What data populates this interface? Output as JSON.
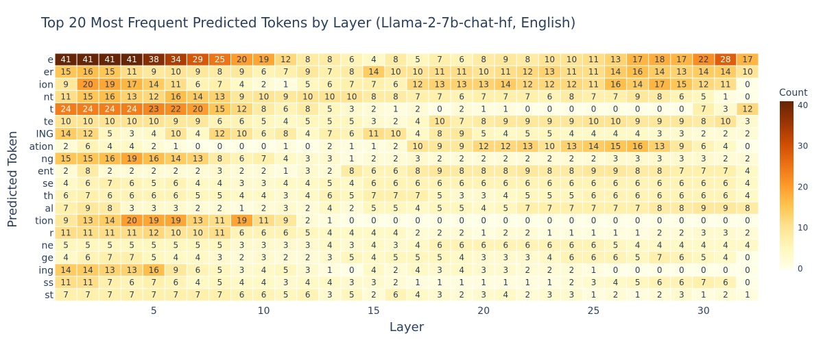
{
  "chart_data": {
    "type": "heatmap",
    "title": "Top 20 Most Frequent Predicted Tokens by Layer (Llama-2-7b-chat-hf, English)",
    "xlabel": "Layer",
    "ylabel": "Predicted Token",
    "colorbar_title": "Count",
    "x": [
      1,
      2,
      3,
      4,
      5,
      6,
      7,
      8,
      9,
      10,
      11,
      12,
      13,
      14,
      15,
      16,
      17,
      18,
      19,
      20,
      21,
      22,
      23,
      24,
      25,
      26,
      27,
      28,
      29,
      30,
      31,
      32
    ],
    "x_ticks": [
      5,
      10,
      15,
      20,
      25,
      30
    ],
    "zlim": [
      0,
      41
    ],
    "colorbar_ticks": [
      0,
      10,
      20,
      30,
      40
    ],
    "colorscale": [
      "#ffffe5",
      "#fff7bc",
      "#fee391",
      "#fec44f",
      "#fe9929",
      "#ec7014",
      "#cc4c02",
      "#993404",
      "#662506"
    ],
    "y": [
      "e",
      "er",
      "ion",
      "nt",
      "t",
      "te",
      "ING",
      "ation",
      "ng",
      "ent",
      "se",
      "th",
      "al",
      "tion",
      "r",
      "ne",
      "ge",
      "ing",
      "ss",
      "st"
    ],
    "z": [
      [
        41,
        41,
        41,
        41,
        38,
        34,
        29,
        25,
        20,
        19,
        12,
        8,
        8,
        6,
        4,
        8,
        5,
        7,
        6,
        8,
        9,
        8,
        10,
        10,
        11,
        13,
        17,
        18,
        17,
        22,
        28,
        17
      ],
      [
        15,
        16,
        15,
        11,
        9,
        10,
        9,
        8,
        9,
        6,
        7,
        9,
        7,
        8,
        14,
        10,
        10,
        11,
        11,
        10,
        11,
        12,
        13,
        11,
        11,
        14,
        16,
        14,
        13,
        14,
        14,
        10
      ],
      [
        9,
        20,
        19,
        17,
        14,
        11,
        6,
        7,
        4,
        2,
        1,
        5,
        6,
        7,
        7,
        6,
        12,
        13,
        13,
        13,
        14,
        12,
        12,
        12,
        11,
        16,
        14,
        17,
        15,
        12,
        11,
        0
      ],
      [
        11,
        15,
        16,
        13,
        12,
        16,
        14,
        13,
        9,
        10,
        9,
        10,
        10,
        10,
        8,
        8,
        7,
        7,
        6,
        7,
        7,
        7,
        6,
        8,
        7,
        7,
        9,
        8,
        6,
        5,
        1,
        0
      ],
      [
        24,
        24,
        24,
        24,
        23,
        22,
        20,
        15,
        12,
        8,
        6,
        8,
        5,
        3,
        2,
        1,
        2,
        0,
        2,
        1,
        1,
        0,
        0,
        0,
        0,
        0,
        0,
        0,
        0,
        7,
        3,
        12
      ],
      [
        10,
        10,
        10,
        10,
        10,
        9,
        9,
        6,
        6,
        5,
        4,
        5,
        5,
        5,
        3,
        2,
        4,
        10,
        7,
        8,
        9,
        9,
        9,
        9,
        10,
        10,
        9,
        9,
        9,
        8,
        10,
        3
      ],
      [
        14,
        12,
        5,
        3,
        4,
        10,
        4,
        12,
        10,
        6,
        8,
        4,
        7,
        6,
        11,
        10,
        4,
        8,
        9,
        5,
        4,
        5,
        5,
        4,
        4,
        4,
        4,
        3,
        3,
        2,
        2,
        2
      ],
      [
        2,
        6,
        4,
        4,
        2,
        1,
        0,
        0,
        0,
        0,
        1,
        0,
        2,
        1,
        1,
        2,
        10,
        9,
        9,
        12,
        12,
        13,
        10,
        13,
        14,
        15,
        16,
        13,
        9,
        6,
        4,
        0
      ],
      [
        15,
        15,
        16,
        19,
        16,
        14,
        13,
        8,
        6,
        7,
        4,
        3,
        3,
        1,
        2,
        2,
        3,
        2,
        2,
        2,
        2,
        2,
        2,
        2,
        2,
        3,
        3,
        3,
        3,
        3,
        2,
        2
      ],
      [
        2,
        8,
        2,
        2,
        2,
        2,
        2,
        3,
        2,
        2,
        1,
        3,
        2,
        8,
        6,
        6,
        8,
        9,
        8,
        8,
        8,
        9,
        8,
        8,
        9,
        9,
        8,
        8,
        7,
        7,
        7,
        4
      ],
      [
        4,
        6,
        7,
        6,
        5,
        6,
        4,
        4,
        3,
        3,
        4,
        4,
        5,
        4,
        6,
        6,
        6,
        6,
        6,
        6,
        6,
        6,
        6,
        6,
        6,
        6,
        6,
        6,
        6,
        6,
        6,
        4
      ],
      [
        6,
        7,
        6,
        6,
        6,
        6,
        5,
        5,
        4,
        4,
        3,
        4,
        6,
        5,
        7,
        7,
        7,
        5,
        3,
        3,
        4,
        5,
        5,
        5,
        6,
        6,
        6,
        6,
        6,
        6,
        6,
        4
      ],
      [
        7,
        9,
        8,
        3,
        3,
        3,
        2,
        2,
        1,
        2,
        3,
        2,
        4,
        2,
        5,
        5,
        4,
        5,
        5,
        4,
        5,
        7,
        7,
        7,
        7,
        7,
        7,
        8,
        8,
        9,
        9,
        8
      ],
      [
        9,
        13,
        14,
        20,
        19,
        19,
        13,
        11,
        19,
        11,
        9,
        2,
        1,
        0,
        0,
        0,
        0,
        0,
        0,
        0,
        0,
        0,
        0,
        0,
        0,
        0,
        0,
        0,
        0,
        0,
        0,
        0
      ],
      [
        11,
        11,
        11,
        11,
        12,
        10,
        10,
        11,
        6,
        6,
        6,
        5,
        4,
        4,
        4,
        4,
        2,
        2,
        2,
        1,
        2,
        2,
        1,
        1,
        1,
        1,
        1,
        2,
        2,
        3,
        3,
        2
      ],
      [
        5,
        5,
        5,
        5,
        5,
        5,
        5,
        5,
        3,
        3,
        3,
        3,
        4,
        3,
        4,
        3,
        4,
        6,
        6,
        6,
        6,
        6,
        6,
        6,
        6,
        5,
        4,
        4,
        4,
        4,
        4,
        4
      ],
      [
        4,
        6,
        7,
        7,
        5,
        4,
        4,
        3,
        2,
        3,
        2,
        2,
        3,
        5,
        4,
        5,
        5,
        5,
        4,
        3,
        3,
        3,
        4,
        6,
        6,
        6,
        5,
        7,
        6,
        5,
        4,
        0
      ],
      [
        14,
        14,
        13,
        13,
        16,
        9,
        6,
        5,
        3,
        4,
        5,
        3,
        1,
        0,
        4,
        2,
        4,
        3,
        4,
        3,
        3,
        2,
        2,
        2,
        1,
        0,
        0,
        0,
        0,
        0,
        0,
        0
      ],
      [
        11,
        11,
        7,
        6,
        7,
        6,
        4,
        5,
        4,
        4,
        3,
        4,
        4,
        3,
        3,
        2,
        1,
        1,
        1,
        1,
        1,
        1,
        1,
        2,
        3,
        4,
        5,
        6,
        6,
        7,
        6,
        0
      ],
      [
        7,
        7,
        7,
        7,
        7,
        7,
        7,
        7,
        6,
        6,
        5,
        6,
        3,
        5,
        2,
        6,
        4,
        3,
        2,
        3,
        4,
        2,
        3,
        3,
        1,
        2,
        1,
        2,
        3,
        1,
        2,
        1
      ]
    ]
  }
}
